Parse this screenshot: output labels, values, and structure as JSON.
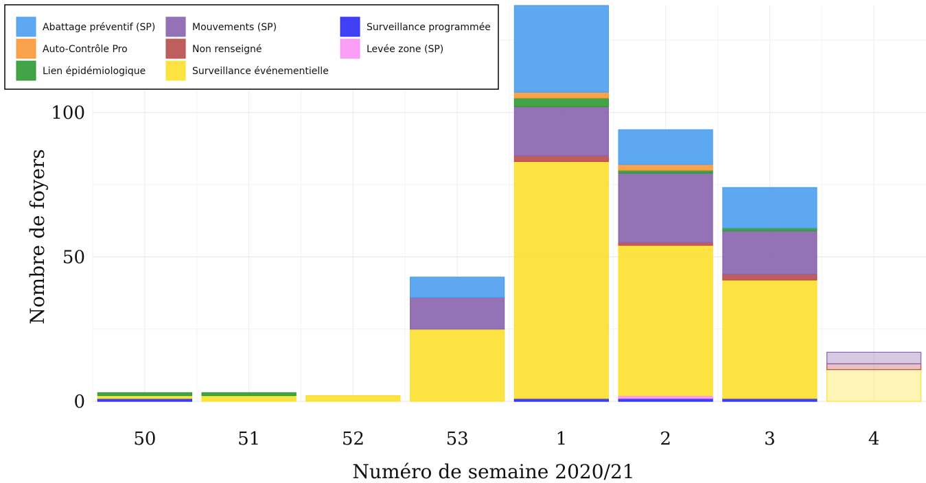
{
  "chart_data": {
    "type": "bar",
    "stacked": true,
    "xlabel": "Numéro de semaine 2020/21",
    "ylabel": "Nombre de foyers",
    "categories": [
      "50",
      "51",
      "52",
      "53",
      "1",
      "2",
      "3",
      "4"
    ],
    "yticks": [
      0,
      50,
      100
    ],
    "ylim": [
      0,
      137
    ],
    "grid": true,
    "legend_position": "top-left",
    "partial_category": "4",
    "series": [
      {
        "name": "Surveillance programmée",
        "color": "#2B2BF5",
        "values": [
          1,
          0,
          0,
          0,
          1,
          1,
          1,
          0
        ]
      },
      {
        "name": "Levée zone (SP)",
        "color": "#F993F5",
        "values": [
          0,
          0,
          0,
          0,
          0,
          1,
          0,
          0
        ]
      },
      {
        "name": "Surveillance événementielle",
        "color": "#FDE02E",
        "values": [
          1,
          2,
          2,
          25,
          82,
          52,
          41,
          11
        ]
      },
      {
        "name": "Non renseigné",
        "color": "#B94C4C",
        "values": [
          0,
          0,
          0,
          0,
          2,
          1,
          2,
          2
        ]
      },
      {
        "name": "Mouvements (SP)",
        "color": "#8A63AE",
        "values": [
          0,
          0,
          0,
          11,
          17,
          24,
          15,
          4
        ]
      },
      {
        "name": "Lien épidémiologique",
        "color": "#2E9A32",
        "values": [
          1,
          1,
          0,
          0,
          3,
          1,
          1,
          0
        ]
      },
      {
        "name": "Auto-Contrôle Pro",
        "color": "#FB9938",
        "values": [
          0,
          0,
          0,
          0,
          2,
          2,
          0,
          0
        ]
      },
      {
        "name": "Abattage préventif (SP)",
        "color": "#4D9FEF",
        "values": [
          0,
          0,
          0,
          7,
          30,
          12,
          14,
          0
        ]
      }
    ],
    "legend_order": [
      "Abattage préventif (SP)",
      "Auto-Contrôle Pro",
      "Lien épidémiologique",
      "Mouvements (SP)",
      "Non renseigné",
      "Surveillance événementielle",
      "Surveillance programmée",
      "Levée zone (SP)"
    ]
  }
}
